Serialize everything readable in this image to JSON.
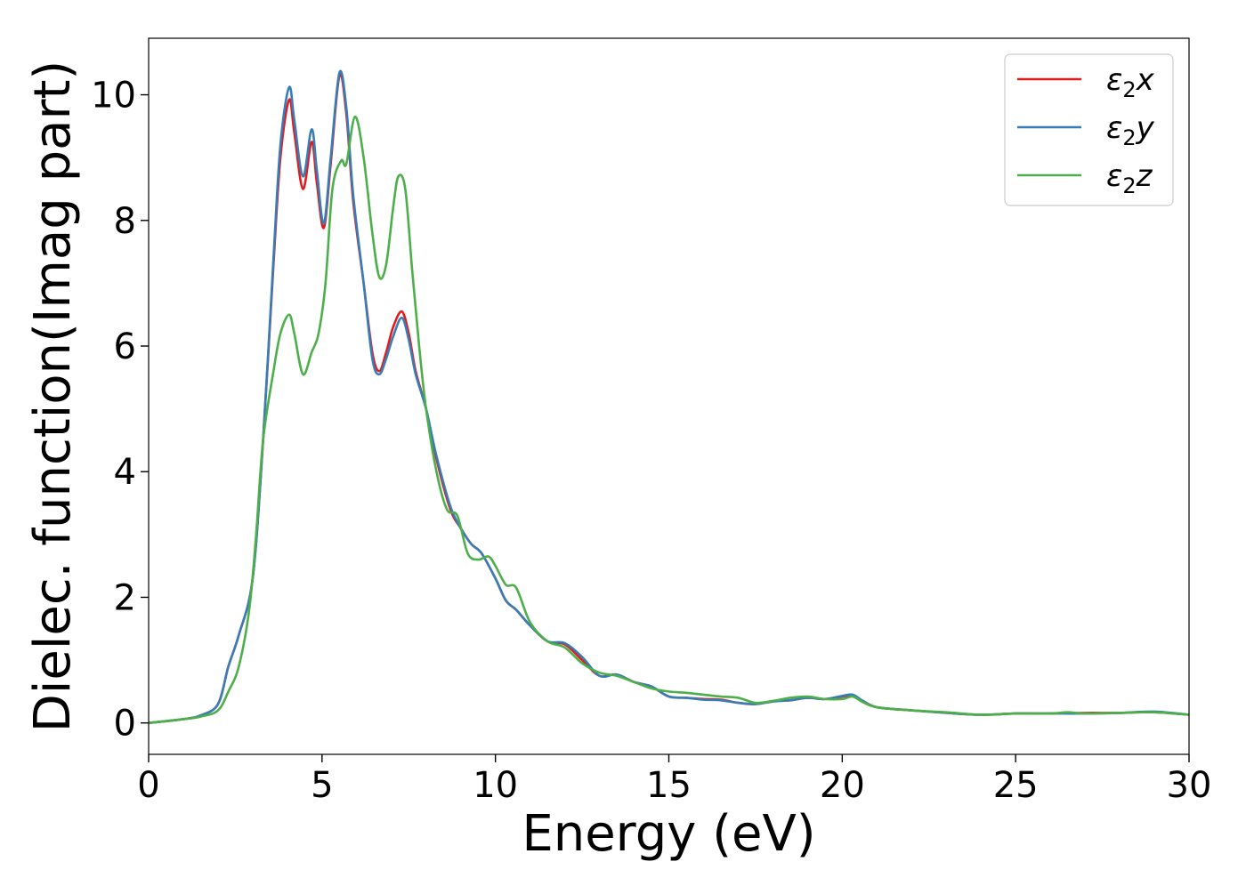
{
  "chart_data": {
    "type": "line",
    "xlabel": "Energy (eV)",
    "ylabel": "Dielec. function(Imag part)",
    "xlim": [
      0,
      30
    ],
    "ylim": [
      -0.5,
      10.9
    ],
    "xticks": [
      0,
      5,
      10,
      15,
      20,
      25,
      30
    ],
    "yticks": [
      0,
      2,
      4,
      6,
      8,
      10
    ],
    "grid": false,
    "legend_position": "top-right",
    "series": [
      {
        "name": "ε2x",
        "legend_base": "ε",
        "legend_sub": "2",
        "legend_suffix": "x",
        "color": "#e41a1c",
        "x": [
          0,
          1,
          1.5,
          2,
          2.3,
          2.6,
          3.0,
          3.3,
          3.6,
          3.8,
          4.05,
          4.2,
          4.45,
          4.7,
          4.85,
          5.05,
          5.25,
          5.5,
          5.7,
          5.9,
          6.2,
          6.45,
          6.65,
          6.85,
          7.05,
          7.3,
          7.5,
          7.7,
          8.0,
          8.3,
          8.7,
          9.0,
          9.3,
          9.6,
          10.0,
          10.3,
          10.6,
          11.0,
          11.5,
          12.0,
          12.5,
          13.0,
          13.5,
          14.0,
          14.5,
          15.0,
          15.5,
          16.0,
          16.5,
          17.0,
          17.5,
          18.0,
          18.5,
          19.0,
          19.5,
          20.0,
          20.3,
          20.6,
          21.0,
          22.0,
          23.0,
          24.0,
          25.0,
          26.0,
          27.0,
          28.0,
          29.0,
          30.0
        ],
        "y": [
          0,
          0.06,
          0.12,
          0.3,
          0.9,
          1.4,
          2.3,
          4.5,
          7.3,
          9.0,
          9.92,
          9.4,
          8.5,
          9.25,
          8.6,
          7.88,
          8.9,
          10.3,
          9.7,
          8.3,
          7.0,
          5.9,
          5.6,
          5.9,
          6.3,
          6.55,
          6.2,
          5.6,
          5.0,
          4.2,
          3.4,
          3.1,
          2.85,
          2.7,
          2.3,
          1.95,
          1.8,
          1.55,
          1.3,
          1.25,
          1.0,
          0.75,
          0.77,
          0.65,
          0.58,
          0.42,
          0.4,
          0.38,
          0.37,
          0.32,
          0.3,
          0.35,
          0.36,
          0.4,
          0.38,
          0.42,
          0.44,
          0.35,
          0.25,
          0.2,
          0.16,
          0.13,
          0.15,
          0.15,
          0.16,
          0.16,
          0.17,
          0.13
        ]
      },
      {
        "name": "ε2y",
        "legend_base": "ε",
        "legend_sub": "2",
        "legend_suffix": "y",
        "color": "#377eb8",
        "x": [
          0,
          1,
          1.5,
          2,
          2.3,
          2.6,
          3.0,
          3.3,
          3.6,
          3.8,
          4.05,
          4.2,
          4.45,
          4.7,
          4.85,
          5.05,
          5.25,
          5.5,
          5.7,
          5.9,
          6.2,
          6.45,
          6.65,
          6.85,
          7.05,
          7.3,
          7.5,
          7.7,
          8.0,
          8.3,
          8.7,
          9.0,
          9.3,
          9.6,
          10.0,
          10.3,
          10.6,
          11.0,
          11.5,
          12.0,
          12.5,
          13.0,
          13.5,
          14.0,
          14.5,
          15.0,
          15.5,
          16.0,
          16.5,
          17.0,
          17.5,
          18.0,
          18.5,
          19.0,
          19.5,
          20.0,
          20.3,
          20.6,
          21.0,
          22.0,
          23.0,
          24.0,
          25.0,
          26.0,
          27.0,
          28.0,
          29.0,
          30.0
        ],
        "y": [
          0,
          0.06,
          0.12,
          0.3,
          0.9,
          1.4,
          2.3,
          4.5,
          7.4,
          9.2,
          10.12,
          9.6,
          8.7,
          9.45,
          8.8,
          7.95,
          9.0,
          10.35,
          9.8,
          8.4,
          7.0,
          5.8,
          5.55,
          5.8,
          6.15,
          6.45,
          6.1,
          5.55,
          5.0,
          4.25,
          3.45,
          3.1,
          2.85,
          2.7,
          2.3,
          1.95,
          1.8,
          1.55,
          1.3,
          1.27,
          1.05,
          0.75,
          0.77,
          0.65,
          0.58,
          0.42,
          0.4,
          0.37,
          0.36,
          0.32,
          0.3,
          0.34,
          0.36,
          0.4,
          0.38,
          0.43,
          0.45,
          0.35,
          0.25,
          0.2,
          0.16,
          0.13,
          0.15,
          0.15,
          0.15,
          0.16,
          0.18,
          0.13
        ]
      },
      {
        "name": "ε2z",
        "legend_base": "ε",
        "legend_sub": "2",
        "legend_suffix": "z",
        "color": "#4daf4a",
        "x": [
          0,
          1,
          1.5,
          2,
          2.3,
          2.6,
          2.9,
          3.1,
          3.3,
          3.6,
          3.8,
          4.05,
          4.2,
          4.45,
          4.7,
          4.9,
          5.1,
          5.3,
          5.55,
          5.7,
          5.95,
          6.2,
          6.45,
          6.65,
          6.85,
          7.05,
          7.2,
          7.4,
          7.6,
          7.8,
          8.0,
          8.3,
          8.6,
          8.9,
          9.2,
          9.5,
          9.8,
          10.0,
          10.3,
          10.6,
          11.0,
          11.5,
          12.0,
          12.5,
          13.0,
          13.5,
          14.0,
          14.5,
          15.0,
          15.5,
          16.0,
          16.5,
          17.0,
          17.5,
          18.0,
          18.5,
          19.0,
          19.5,
          20.0,
          20.3,
          20.6,
          21.0,
          22.0,
          23.0,
          24.0,
          25.0,
          26.0,
          26.5,
          27.0,
          28.0,
          29.0,
          30.0
        ],
        "y": [
          0,
          0.06,
          0.1,
          0.2,
          0.5,
          0.9,
          1.8,
          3.0,
          4.5,
          5.6,
          6.2,
          6.5,
          6.2,
          5.55,
          5.9,
          6.2,
          7.0,
          8.5,
          8.95,
          8.9,
          9.65,
          9.0,
          7.8,
          7.1,
          7.3,
          8.2,
          8.7,
          8.5,
          7.2,
          6.0,
          5.0,
          4.0,
          3.4,
          3.3,
          2.7,
          2.6,
          2.65,
          2.5,
          2.2,
          2.15,
          1.6,
          1.3,
          1.2,
          0.95,
          0.8,
          0.75,
          0.65,
          0.55,
          0.5,
          0.48,
          0.45,
          0.42,
          0.4,
          0.32,
          0.35,
          0.4,
          0.42,
          0.38,
          0.38,
          0.42,
          0.33,
          0.25,
          0.2,
          0.17,
          0.13,
          0.15,
          0.15,
          0.17,
          0.15,
          0.16,
          0.17,
          0.13
        ]
      }
    ]
  }
}
